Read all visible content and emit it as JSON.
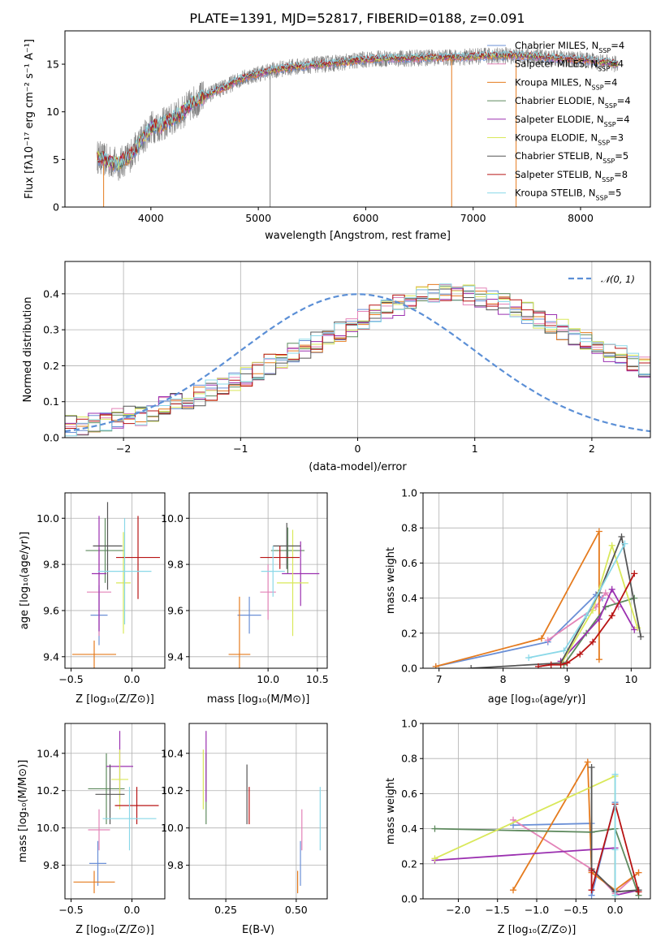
{
  "figure": {
    "title": "PLATE=1391, MJD=52817, FIBERID=0188, z=0.091"
  },
  "chart_data": [
    {
      "id": "spectrum",
      "type": "line",
      "xlabel": "wavelength [Angstrom, rest frame]",
      "ylabel": "Flux [fλ10⁻¹⁷ erg cm⁻² s⁻¹ A⁻¹]",
      "xlim": [
        3200,
        8650
      ],
      "ylim": [
        0,
        18.5
      ],
      "xticks": [
        4000,
        5000,
        6000,
        7000,
        8000
      ],
      "yticks": [
        0,
        5,
        10,
        15
      ],
      "grid": false,
      "legend_position": "top-right",
      "data_color": "#808080",
      "data_range": [
        3500,
        8350
      ],
      "spikes": [
        {
          "x": 5110,
          "value": 0.0
        },
        {
          "x": 6800,
          "value": 0.0
        },
        {
          "x": 3560,
          "value": 0.0
        },
        {
          "x": 7400,
          "value": 0.0
        }
      ],
      "continuum": {
        "x": [
          3500,
          3600,
          3700,
          3800,
          3900,
          4000,
          4100,
          4200,
          4300,
          4400,
          4500,
          4600,
          4700,
          4800,
          4900,
          5000,
          5200,
          5400,
          5600,
          5800,
          6000,
          6200,
          6400,
          6600,
          6800,
          7000,
          7200,
          7400,
          7600,
          7800,
          8000,
          8200,
          8350
        ],
        "y": [
          5.3,
          4.8,
          4.5,
          5.3,
          6.8,
          8.4,
          8.6,
          9.2,
          10.0,
          11.0,
          11.6,
          12.2,
          12.6,
          13.3,
          13.7,
          14.0,
          14.5,
          14.8,
          15.0,
          15.2,
          15.5,
          15.6,
          15.6,
          15.7,
          15.7,
          15.8,
          15.9,
          15.9,
          15.8,
          15.6,
          15.5,
          15.2,
          15.0
        ]
      },
      "series": [
        {
          "name": "Chabrier MILES, N_SSP=4",
          "label_main": "Chabrier MILES, N",
          "label_sub": "SSP",
          "label_tail": "=4",
          "color": "#6a8fd6"
        },
        {
          "name": "Salpeter MILES, N_SSP=4",
          "label_main": "Salpeter MILES, N",
          "label_sub": "SSP",
          "label_tail": "=4",
          "color": "#e383b8"
        },
        {
          "name": "Kroupa MILES, N_SSP=4",
          "label_main": "Kroupa MILES, N",
          "label_sub": "SSP",
          "label_tail": "=4",
          "color": "#e57b1e"
        },
        {
          "name": "Chabrier ELODIE, N_SSP=4",
          "label_main": "Chabrier ELODIE, N",
          "label_sub": "SSP",
          "label_tail": "=4",
          "color": "#5e8a5e"
        },
        {
          "name": "Salpeter ELODIE, N_SSP=4",
          "label_main": "Salpeter ELODIE, N",
          "label_sub": "SSP",
          "label_tail": "=4",
          "color": "#9b30b0"
        },
        {
          "name": "Kroupa ELODIE, N_SSP=3",
          "label_main": "Kroupa ELODIE, N",
          "label_sub": "SSP",
          "label_tail": "=3",
          "color": "#d9e85a"
        },
        {
          "name": "Chabrier STELIB, N_SSP=5",
          "label_main": "Chabrier STELIB, N",
          "label_sub": "SSP",
          "label_tail": "=5",
          "color": "#555555"
        },
        {
          "name": "Salpeter STELIB, N_SSP=8",
          "label_main": "Salpeter STELIB, N",
          "label_sub": "SSP",
          "label_tail": "=8",
          "color": "#b81414"
        },
        {
          "name": "Kroupa STELIB, N_SSP=5",
          "label_main": "Kroupa STELIB, N",
          "label_sub": "SSP",
          "label_tail": "=5",
          "color": "#8ad8e8"
        }
      ]
    },
    {
      "id": "residuals",
      "type": "histogram",
      "xlabel": "(data-model)/error",
      "ylabel": "Normed distribution",
      "xlim": [
        -2.5,
        2.5
      ],
      "ylim": [
        0,
        0.49
      ],
      "xticks": [
        -2,
        -1,
        0,
        1,
        2
      ],
      "yticks": [
        0.0,
        0.1,
        0.2,
        0.3,
        0.4
      ],
      "grid": true,
      "legend": {
        "label": "𝒩(0, 1)",
        "position": "top-right",
        "color": "#5b8fd6"
      },
      "bin_width": 0.1,
      "bin_start": -2.5,
      "base_values": [
        0.032,
        0.03,
        0.038,
        0.045,
        0.052,
        0.058,
        0.063,
        0.074,
        0.085,
        0.098,
        0.108,
        0.118,
        0.131,
        0.145,
        0.16,
        0.173,
        0.189,
        0.205,
        0.219,
        0.237,
        0.25,
        0.266,
        0.28,
        0.294,
        0.309,
        0.327,
        0.341,
        0.355,
        0.368,
        0.381,
        0.392,
        0.398,
        0.402,
        0.4,
        0.397,
        0.389,
        0.38,
        0.371,
        0.36,
        0.347,
        0.334,
        0.318,
        0.302,
        0.288,
        0.272,
        0.257,
        0.241,
        0.226,
        0.212,
        0.196
      ],
      "base_values_right": [
        0.181,
        0.166,
        0.151,
        0.139,
        0.126,
        0.114,
        0.102,
        0.09,
        0.08,
        0.07,
        0.063,
        0.056,
        0.05,
        0.044,
        0.038,
        0.034,
        0.03,
        0.026,
        0.023,
        0.02
      ],
      "note_values_source": "bin heights read off the plot"
    },
    {
      "id": "age-vs-Z",
      "type": "errorbar",
      "xlabel": "Z [log₁₀(Z/Z⊙)]",
      "ylabel": "age  [log₁₀(age/yr)]",
      "xlim": [
        -0.55,
        0.27
      ],
      "ylim": [
        9.35,
        10.11
      ],
      "xticks": [
        -0.5,
        0.0
      ],
      "yticks": [
        9.4,
        9.6,
        9.8,
        10.0
      ],
      "grid": true,
      "points": [
        {
          "series": 0,
          "x": -0.27,
          "xerr": 0.07,
          "y": 9.58,
          "yerr": 0.13
        },
        {
          "series": 1,
          "x": -0.27,
          "xerr": 0.1,
          "y": 9.68,
          "yerr": 0.19
        },
        {
          "series": 2,
          "x": -0.31,
          "xerr": 0.18,
          "y": 9.41,
          "yerr": 0.06
        },
        {
          "series": 3,
          "x": -0.22,
          "xerr": 0.16,
          "y": 9.86,
          "yerr": 0.14
        },
        {
          "series": 4,
          "x": -0.27,
          "xerr": 0.06,
          "y": 9.76,
          "yerr": 0.25
        },
        {
          "series": 5,
          "x": -0.07,
          "xerr": 0.06,
          "y": 9.72,
          "yerr": 0.22
        },
        {
          "series": 6,
          "x": -0.2,
          "xerr": 0.12,
          "y": 9.88,
          "yerr": 0.19
        },
        {
          "series": 7,
          "x": 0.05,
          "xerr": 0.18,
          "y": 9.83,
          "yerr": 0.18
        },
        {
          "series": 8,
          "x": -0.06,
          "xerr": 0.22,
          "y": 9.77,
          "yerr": 0.23
        }
      ]
    },
    {
      "id": "age-vs-mass",
      "type": "errorbar",
      "xlabel": "mass [log₁₀(M/M⊙)]",
      "ylabel": "",
      "xlim": [
        9.2,
        10.6
      ],
      "ylim": [
        9.35,
        10.11
      ],
      "xticks": [
        10.0,
        10.5
      ],
      "yticks": [
        9.4,
        9.6,
        9.8,
        10.0
      ],
      "grid": true,
      "points": [
        {
          "series": 0,
          "x": 9.81,
          "xerr": 0.12,
          "y": 9.58,
          "yerr": 0.08
        },
        {
          "series": 1,
          "x": 10.0,
          "xerr": 0.08,
          "y": 9.68,
          "yerr": 0.12
        },
        {
          "series": 2,
          "x": 9.71,
          "xerr": 0.11,
          "y": 9.41,
          "yerr": 0.25
        },
        {
          "series": 3,
          "x": 10.2,
          "xerr": 0.17,
          "y": 9.86,
          "yerr": 0.1
        },
        {
          "series": 4,
          "x": 10.33,
          "xerr": 0.19,
          "y": 9.76,
          "yerr": 0.14
        },
        {
          "series": 5,
          "x": 10.25,
          "xerr": 0.16,
          "y": 9.72,
          "yerr": 0.23
        },
        {
          "series": 6,
          "x": 10.19,
          "xerr": 0.14,
          "y": 9.88,
          "yerr": 0.1
        },
        {
          "series": 7,
          "x": 10.12,
          "xerr": 0.2,
          "y": 9.83,
          "yerr": 0.05
        },
        {
          "series": 8,
          "x": 10.05,
          "xerr": 0.12,
          "y": 9.77,
          "yerr": 0.11
        }
      ]
    },
    {
      "id": "massweight-vs-age",
      "type": "line",
      "xlabel": "age  [log₁₀(age/yr)]",
      "ylabel": "mass weight",
      "xlim": [
        6.75,
        10.3
      ],
      "ylim": [
        0,
        1.0
      ],
      "xticks": [
        7,
        8,
        9,
        10
      ],
      "yticks": [
        0.0,
        0.2,
        0.4,
        0.6,
        0.8,
        1.0
      ],
      "grid": true,
      "series": [
        {
          "series": 0,
          "x": [
            6.95,
            8.7,
            9.45,
            9.55
          ],
          "y": [
            0.01,
            0.15,
            0.42,
            0.4
          ]
        },
        {
          "series": 1,
          "x": [
            8.7,
            9.45,
            9.6,
            9.8
          ],
          "y": [
            0.16,
            0.35,
            0.43,
            0.35
          ]
        },
        {
          "series": 2,
          "x": [
            6.95,
            8.6,
            9.5,
            9.5
          ],
          "y": [
            0.01,
            0.17,
            0.78,
            0.05
          ]
        },
        {
          "series": 3,
          "x": [
            8.95,
            9.3,
            9.6,
            10.05
          ],
          "y": [
            0.02,
            0.2,
            0.35,
            0.4
          ]
        },
        {
          "series": 4,
          "x": [
            8.9,
            9.5,
            9.7,
            10.05
          ],
          "y": [
            0.04,
            0.28,
            0.45,
            0.22
          ]
        },
        {
          "series": 5,
          "x": [
            8.9,
            9.4,
            9.7,
            10.1
          ],
          "y": [
            0.02,
            0.33,
            0.7,
            0.23
          ]
        },
        {
          "series": 6,
          "x": [
            7.5,
            8.9,
            9.5,
            9.85,
            10.15
          ],
          "y": [
            0.0,
            0.03,
            0.43,
            0.75,
            0.18
          ]
        },
        {
          "series": 7,
          "x": [
            8.55,
            8.75,
            8.9,
            9.0,
            9.2,
            9.4,
            9.7,
            10.05
          ],
          "y": [
            0.01,
            0.02,
            0.02,
            0.03,
            0.08,
            0.15,
            0.3,
            0.54
          ]
        },
        {
          "series": 8,
          "x": [
            8.4,
            8.95,
            9.3,
            9.9
          ],
          "y": [
            0.06,
            0.1,
            0.3,
            0.71
          ]
        }
      ]
    },
    {
      "id": "mass-vs-Z",
      "type": "errorbar",
      "xlabel": "Z [log₁₀(Z/Z⊙)]",
      "ylabel": "mass [log₁₀(M/M⊙)]",
      "xlim": [
        -0.55,
        0.27
      ],
      "ylim": [
        9.62,
        10.56
      ],
      "xticks": [
        -0.5,
        0.0
      ],
      "yticks": [
        9.8,
        10.0,
        10.2,
        10.4
      ],
      "grid": true,
      "points": [
        {
          "series": 0,
          "x": -0.28,
          "xerr": 0.07,
          "y": 9.81,
          "yerr": 0.12
        },
        {
          "series": 1,
          "x": -0.27,
          "xerr": 0.09,
          "y": 9.99,
          "yerr": 0.11
        },
        {
          "series": 2,
          "x": -0.31,
          "xerr": 0.17,
          "y": 9.71,
          "yerr": 0.06
        },
        {
          "series": 3,
          "x": -0.21,
          "xerr": 0.15,
          "y": 10.21,
          "yerr": 0.19
        },
        {
          "series": 4,
          "x": -0.1,
          "xerr": 0.11,
          "y": 10.33,
          "yerr": 0.19
        },
        {
          "series": 5,
          "x": -0.1,
          "xerr": 0.07,
          "y": 10.26,
          "yerr": 0.16
        },
        {
          "series": 6,
          "x": -0.18,
          "xerr": 0.12,
          "y": 10.18,
          "yerr": 0.16
        },
        {
          "series": 7,
          "x": 0.04,
          "xerr": 0.18,
          "y": 10.12,
          "yerr": 0.1
        },
        {
          "series": 8,
          "x": -0.02,
          "xerr": 0.22,
          "y": 10.05,
          "yerr": 0.17
        }
      ]
    },
    {
      "id": "mass-vs-EBV",
      "type": "errorbar",
      "xlabel": "E(B-V)",
      "ylabel": "",
      "xlim": [
        0.12,
        0.61
      ],
      "ylim": [
        9.62,
        10.56
      ],
      "xticks": [
        0.25,
        0.5
      ],
      "yticks": [
        9.8,
        10.0,
        10.2,
        10.4
      ],
      "grid": true,
      "points": [
        {
          "series": 0,
          "x": 0.515,
          "xerr": 0.0,
          "y": 9.81,
          "yerr": 0.12
        },
        {
          "series": 1,
          "x": 0.52,
          "xerr": 0.0,
          "y": 9.99,
          "yerr": 0.11
        },
        {
          "series": 2,
          "x": 0.505,
          "xerr": 0.0,
          "y": 9.71,
          "yerr": 0.06
        },
        {
          "series": 3,
          "x": 0.18,
          "xerr": 0.0,
          "y": 10.21,
          "yerr": 0.19
        },
        {
          "series": 4,
          "x": 0.18,
          "xerr": 0.0,
          "y": 10.33,
          "yerr": 0.19
        },
        {
          "series": 5,
          "x": 0.17,
          "xerr": 0.0,
          "y": 10.26,
          "yerr": 0.16
        },
        {
          "series": 6,
          "x": 0.325,
          "xerr": 0.0,
          "y": 10.18,
          "yerr": 0.16
        },
        {
          "series": 7,
          "x": 0.333,
          "xerr": 0.0,
          "y": 10.12,
          "yerr": 0.1
        },
        {
          "series": 8,
          "x": 0.585,
          "xerr": 0.0,
          "y": 10.05,
          "yerr": 0.17
        }
      ]
    },
    {
      "id": "massweight-vs-Z",
      "type": "line",
      "xlabel": "Z [log₁₀(Z/Z⊙)]",
      "ylabel": "mass weight",
      "xlim": [
        -2.45,
        0.45
      ],
      "ylim": [
        0,
        1.0
      ],
      "xticks": [
        -2.0,
        -1.5,
        -1.0,
        -0.5,
        0.0
      ],
      "yticks": [
        0.0,
        0.2,
        0.4,
        0.6,
        0.8,
        1.0
      ],
      "grid": true,
      "series": [
        {
          "series": 0,
          "x": [
            -1.3,
            -0.3,
            -0.3,
            0.0
          ],
          "y": [
            0.42,
            0.43,
            0.02,
            0.55
          ]
        },
        {
          "series": 1,
          "x": [
            -1.3,
            -0.3,
            0.0,
            0.3
          ],
          "y": [
            0.45,
            0.17,
            0.03,
            0.15
          ]
        },
        {
          "series": 2,
          "x": [
            -1.3,
            -0.35,
            -0.3,
            0.0,
            0.3
          ],
          "y": [
            0.05,
            0.78,
            0.15,
            0.05,
            0.15
          ]
        },
        {
          "series": 3,
          "x": [
            -2.3,
            -0.3,
            0.0,
            0.3
          ],
          "y": [
            0.4,
            0.38,
            0.4,
            0.02
          ]
        },
        {
          "series": 4,
          "x": [
            -2.3,
            0.0,
            0.0,
            0.3
          ],
          "y": [
            0.22,
            0.29,
            0.02,
            0.05
          ]
        },
        {
          "series": 5,
          "x": [
            -2.3,
            0.0,
            0.0
          ],
          "y": [
            0.23,
            0.7,
            0.02
          ]
        },
        {
          "series": 6,
          "x": [
            -0.3,
            -0.3,
            0.0,
            0.3
          ],
          "y": [
            0.75,
            0.17,
            0.04,
            0.05
          ]
        },
        {
          "series": 7,
          "x": [
            -0.3,
            -0.3,
            0.0,
            0.3
          ],
          "y": [
            0.16,
            0.05,
            0.54,
            0.04
          ]
        },
        {
          "series": 8,
          "x": [
            0.0,
            0.0,
            0.0
          ],
          "y": [
            0.71,
            0.02,
            0.28
          ]
        }
      ]
    }
  ]
}
